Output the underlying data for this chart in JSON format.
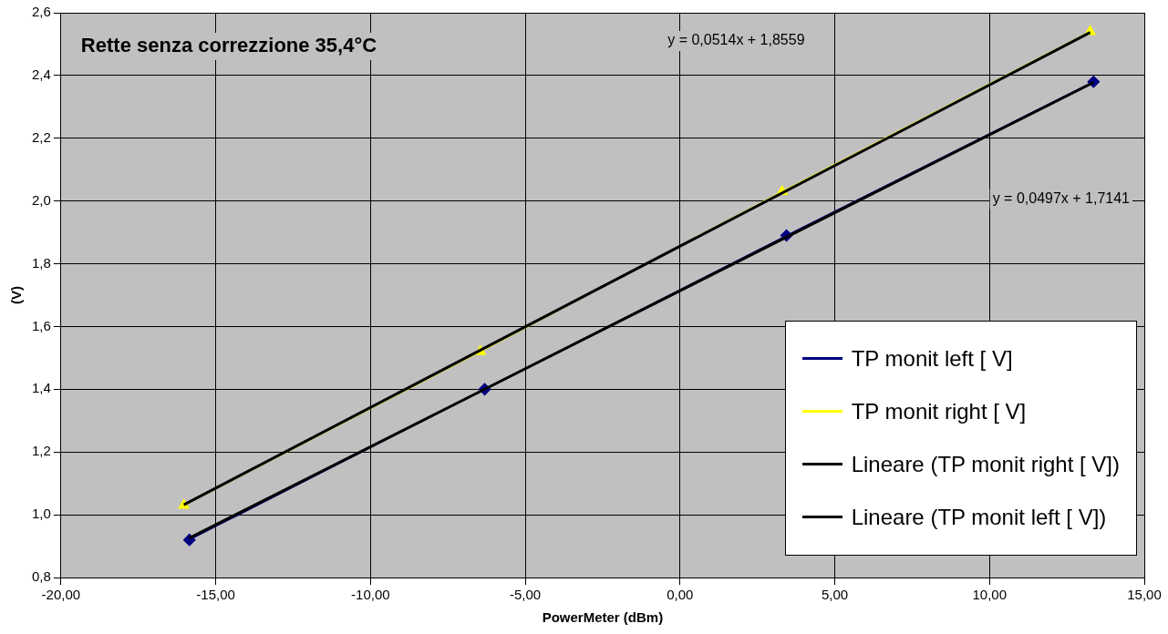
{
  "chart_data": {
    "type": "line",
    "title": "Rette senza correzzione 35,4°C",
    "xlabel": "PowerMeter (dBm)",
    "ylabel": "(V)",
    "xlim": [
      -20,
      15
    ],
    "xticks": [
      {
        "value": -20,
        "label": "-20,00"
      },
      {
        "value": -15,
        "label": "-15,00"
      },
      {
        "value": -10,
        "label": "-10,00"
      },
      {
        "value": -5,
        "label": "-5,00"
      },
      {
        "value": 0,
        "label": "0,00"
      },
      {
        "value": 5,
        "label": "5,00"
      },
      {
        "value": 10,
        "label": "10,00"
      },
      {
        "value": 15,
        "label": "15,00"
      }
    ],
    "ylim": [
      0.8,
      2.6
    ],
    "yticks": [
      {
        "value": 0.8,
        "label": "0,8"
      },
      {
        "value": 1.0,
        "label": "1,0"
      },
      {
        "value": 1.2,
        "label": "1,2"
      },
      {
        "value": 1.4,
        "label": "1,4"
      },
      {
        "value": 1.6,
        "label": "1,6"
      },
      {
        "value": 1.8,
        "label": "1,8"
      },
      {
        "value": 2.0,
        "label": "2,0"
      },
      {
        "value": 2.2,
        "label": "2,2"
      },
      {
        "value": 2.4,
        "label": "2,4"
      },
      {
        "value": 2.6,
        "label": "2,6"
      }
    ],
    "grid": true,
    "legend": "bottom right",
    "series": [
      {
        "name": "TP monit left [ V]",
        "marker": "diamond",
        "color": "#000080",
        "x": [
          -15.85,
          -6.31,
          3.44,
          13.36
        ],
        "values": [
          0.92,
          1.4,
          1.89,
          2.38
        ]
      },
      {
        "name": "TP monit right [ V]",
        "marker": "triangle",
        "color": "#ffff00",
        "x": [
          -16.03,
          -6.45,
          3.3,
          13.25
        ],
        "values": [
          1.03,
          1.52,
          2.03,
          2.54
        ]
      },
      {
        "name": "Lineare (TP monit right [ V])",
        "marker": "none",
        "color": "#000000",
        "x": [
          -16.03,
          13.25
        ],
        "values": [
          1.032,
          2.537
        ]
      },
      {
        "name": "Lineare (TP monit left [ V])",
        "marker": "none",
        "color": "#000000",
        "x": [
          -15.85,
          13.36
        ],
        "values": [
          0.926,
          2.378
        ]
      }
    ],
    "annotations": [
      "y = 0,0514x + 1,8559",
      "y = 0,0497x + 1,7141"
    ]
  }
}
